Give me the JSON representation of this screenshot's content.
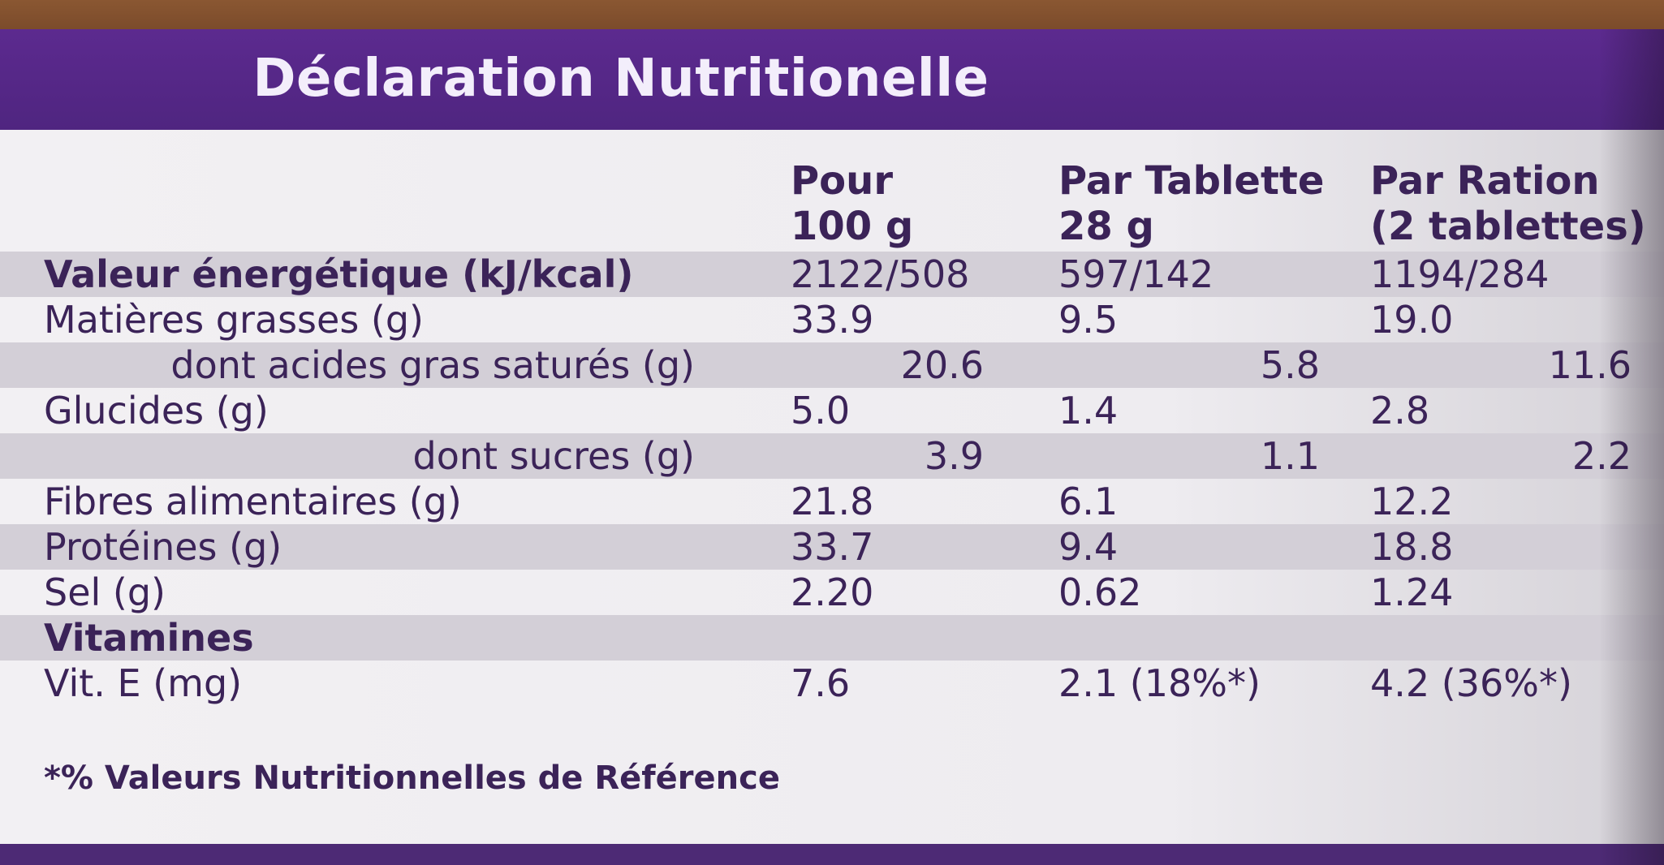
{
  "title": "Déclaration Nutritionelle",
  "columns": [
    {
      "line1": "Pour",
      "line2": "100 g"
    },
    {
      "line1": "Par Tablette",
      "line2": "28 g"
    },
    {
      "line1": "Par Ration",
      "line2": "(2 tablettes)"
    }
  ],
  "rows": [
    {
      "label": "Valeur énergétique (kJ/kcal)",
      "v1": "2122/508",
      "v2": "597/142",
      "v3": "1194/284"
    },
    {
      "label": "Matières grasses (g)",
      "v1": "33.9",
      "v2": "9.5",
      "v3": "19.0"
    },
    {
      "label": "dont acides gras saturés (g)",
      "v1": "20.6",
      "v2": "5.8",
      "v3": "11.6"
    },
    {
      "label": "Glucides (g)",
      "v1": "5.0",
      "v2": "1.4",
      "v3": "2.8"
    },
    {
      "label": "dont sucres (g)",
      "v1": "3.9",
      "v2": "1.1",
      "v3": "2.2"
    },
    {
      "label": "Fibres alimentaires (g)",
      "v1": "21.8",
      "v2": "6.1",
      "v3": "12.2"
    },
    {
      "label": "Protéines (g)",
      "v1": "33.7",
      "v2": "9.4",
      "v3": "18.8"
    },
    {
      "label": "Sel (g)",
      "v1": "2.20",
      "v2": "0.62",
      "v3": "1.24"
    },
    {
      "label": "Vitamines",
      "v1": "",
      "v2": "",
      "v3": ""
    },
    {
      "label": "Vit. E (mg)",
      "v1": "7.6",
      "v2": "2.1 (18%*)",
      "v3": "4.2 (36%*)"
    }
  ],
  "footnote": "*% Valeurs Nutritionnelles de Référence",
  "colors": {
    "purple": "#5b2d8c",
    "text": "#3b2358",
    "panel": "#f2f0f3",
    "band": "#d3cfd7"
  }
}
